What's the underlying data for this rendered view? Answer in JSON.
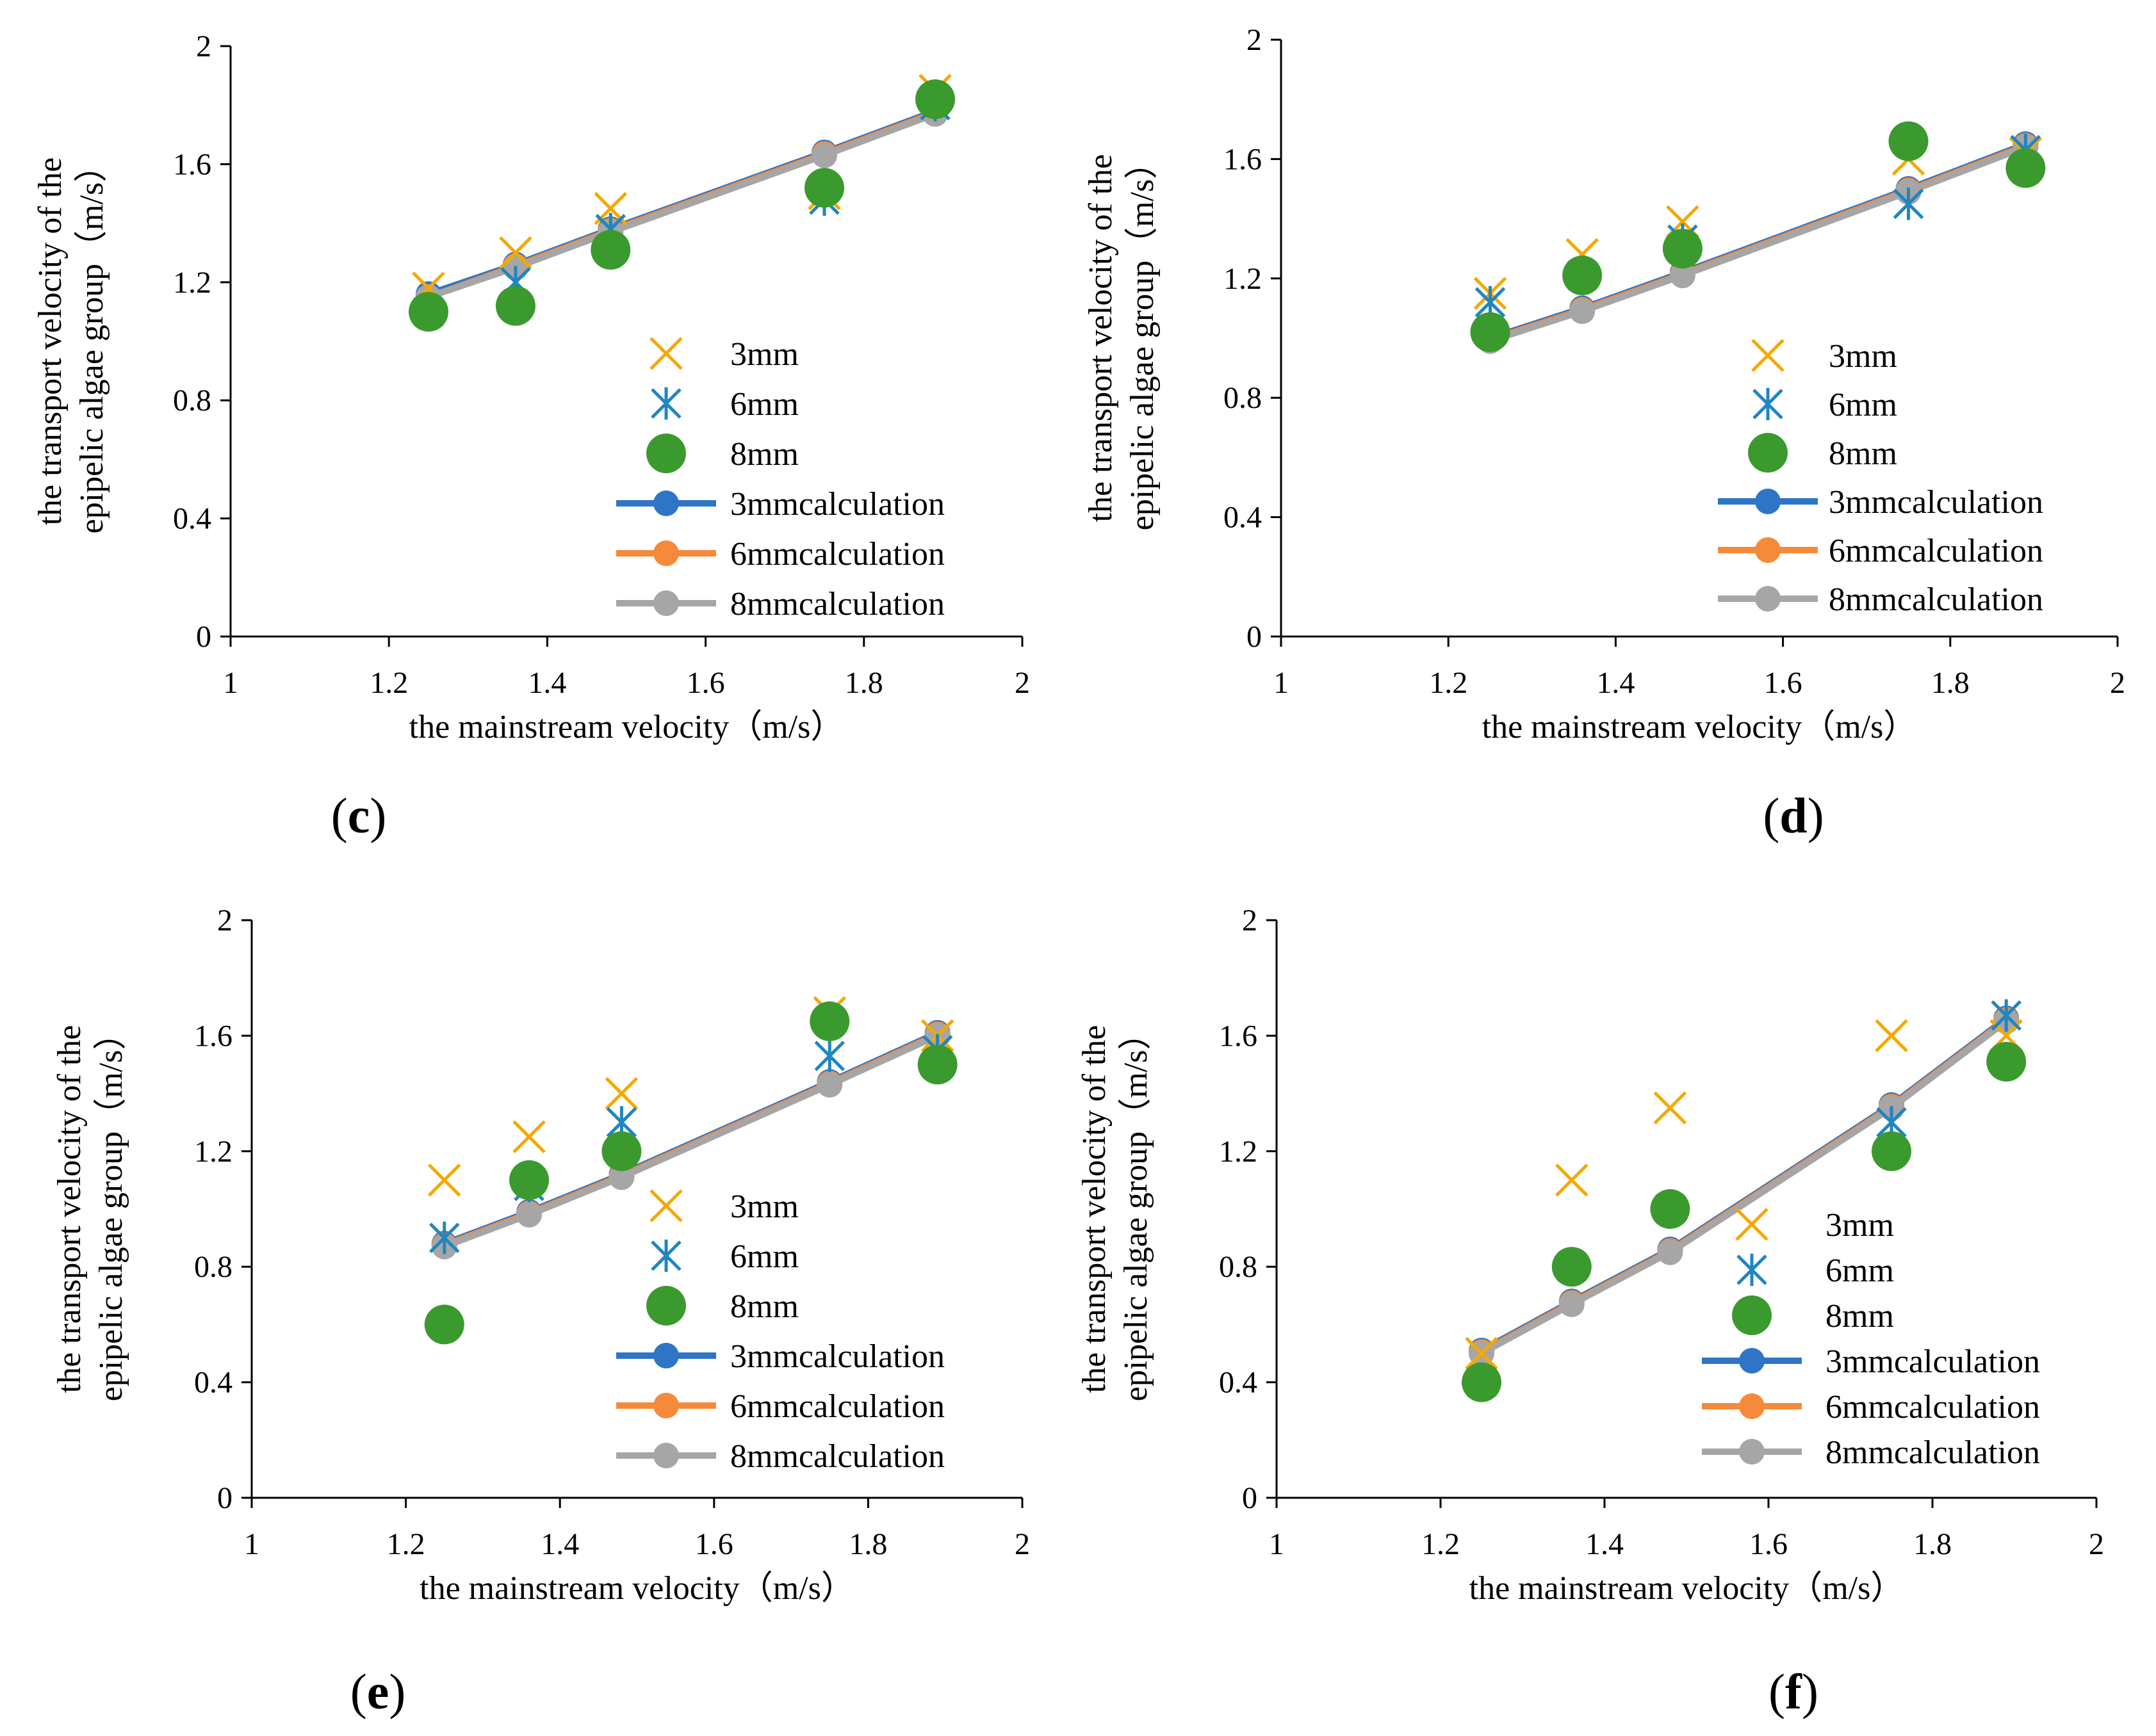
{
  "colors": {
    "3mm": "#F5A800",
    "6mm": "#1F86C0",
    "8mm": "#3A9A2E",
    "calc3": "#2E75C6",
    "calc6": "#F58A3A",
    "calc8": "#A6A6A6"
  },
  "chart_data": [
    {
      "type": "scatter",
      "panel_label": "c",
      "xlabel": "the mainstream velocity（m/s）",
      "ylabel_line1": "the transport velocity of the",
      "ylabel_line2": "epipelic algae group（m/s）",
      "xlim": [
        1,
        2
      ],
      "ylim": [
        0,
        2
      ],
      "xticks": [
        "1",
        "1.2",
        "1.4",
        "1.6",
        "1.8",
        "2"
      ],
      "yticks": [
        "0",
        "0.4",
        "0.8",
        "1.2",
        "1.6",
        "2"
      ],
      "legend_position": "right",
      "x": [
        1.25,
        1.36,
        1.48,
        1.75,
        1.89
      ],
      "series": [
        {
          "name": "3mm",
          "marker": "x",
          "values": [
            1.18,
            1.3,
            1.45,
            1.5,
            1.85
          ]
        },
        {
          "name": "6mm",
          "marker": "star",
          "values": [
            1.1,
            1.2,
            1.38,
            1.48,
            1.8
          ]
        },
        {
          "name": "8mm",
          "marker": "dot",
          "values": [
            1.1,
            1.12,
            1.31,
            1.52,
            1.82
          ]
        },
        {
          "name": "3mmcalculation",
          "marker": "line",
          "values": [
            1.16,
            1.26,
            1.38,
            1.64,
            1.78
          ]
        },
        {
          "name": "6mmcalculation",
          "marker": "line",
          "values": [
            1.15,
            1.255,
            1.375,
            1.635,
            1.775
          ]
        },
        {
          "name": "8mmcalculation",
          "marker": "line",
          "values": [
            1.15,
            1.25,
            1.37,
            1.63,
            1.77
          ]
        }
      ]
    },
    {
      "type": "scatter",
      "panel_label": "d",
      "xlabel": "the mainstream velocity（m/s）",
      "ylabel_line1": "the transport velocity of the",
      "ylabel_line2": "epipelic algae group（m/s）",
      "xlim": [
        1,
        2
      ],
      "ylim": [
        0,
        2
      ],
      "xticks": [
        "1",
        "1.2",
        "1.4",
        "1.6",
        "1.8",
        "2"
      ],
      "yticks": [
        "0",
        "0.4",
        "0.8",
        "1.2",
        "1.6",
        "2"
      ],
      "legend_position": "right",
      "x": [
        1.25,
        1.36,
        1.48,
        1.75,
        1.89
      ],
      "series": [
        {
          "name": "3mm",
          "marker": "x",
          "values": [
            1.15,
            1.28,
            1.39,
            1.6,
            1.62
          ]
        },
        {
          "name": "6mm",
          "marker": "star",
          "values": [
            1.12,
            1.21,
            1.33,
            1.45,
            1.63
          ]
        },
        {
          "name": "8mm",
          "marker": "dot",
          "values": [
            1.02,
            1.21,
            1.3,
            1.66,
            1.57
          ]
        },
        {
          "name": "3mmcalculation",
          "marker": "line",
          "values": [
            1.0,
            1.1,
            1.22,
            1.5,
            1.65
          ]
        },
        {
          "name": "6mmcalculation",
          "marker": "line",
          "values": [
            0.995,
            1.095,
            1.215,
            1.495,
            1.645
          ]
        },
        {
          "name": "8mmcalculation",
          "marker": "line",
          "values": [
            0.99,
            1.09,
            1.21,
            1.49,
            1.64
          ]
        }
      ]
    },
    {
      "type": "scatter",
      "panel_label": "e",
      "xlabel": "the mainstream velocity（m/s）",
      "ylabel_line1": "the transport velocity of the",
      "ylabel_line2": "epipelic algae group（m/s）",
      "xlim": [
        1,
        2
      ],
      "ylim": [
        0,
        2
      ],
      "xticks": [
        "1",
        "1.2",
        "1.4",
        "1.6",
        "1.8",
        "2"
      ],
      "yticks": [
        "0",
        "0.4",
        "0.8",
        "1.2",
        "1.6",
        "2"
      ],
      "legend_position": "right",
      "x": [
        1.25,
        1.36,
        1.48,
        1.75,
        1.89
      ],
      "series": [
        {
          "name": "3mm",
          "marker": "x",
          "values": [
            1.1,
            1.25,
            1.4,
            1.68,
            1.6
          ]
        },
        {
          "name": "6mm",
          "marker": "star",
          "values": [
            0.9,
            1.08,
            1.3,
            1.53,
            1.55
          ]
        },
        {
          "name": "8mm",
          "marker": "dot",
          "values": [
            0.6,
            1.1,
            1.2,
            1.65,
            1.5
          ]
        },
        {
          "name": "3mmcalculation",
          "marker": "line",
          "values": [
            0.88,
            0.99,
            1.12,
            1.44,
            1.61
          ]
        },
        {
          "name": "6mmcalculation",
          "marker": "line",
          "values": [
            0.875,
            0.985,
            1.115,
            1.435,
            1.605
          ]
        },
        {
          "name": "8mmcalculation",
          "marker": "line",
          "values": [
            0.87,
            0.98,
            1.11,
            1.43,
            1.6
          ]
        }
      ]
    },
    {
      "type": "scatter",
      "panel_label": "f",
      "xlabel": "the mainstream velocity（m/s）",
      "ylabel_line1": "the transport velocity of the",
      "ylabel_line2": "epipelic algae group（m/s）",
      "xlim": [
        1,
        2
      ],
      "ylim": [
        0,
        2
      ],
      "xticks": [
        "1",
        "1.2",
        "1.4",
        "1.6",
        "1.8",
        "2"
      ],
      "yticks": [
        "0",
        "0.4",
        "0.8",
        "1.2",
        "1.6",
        "2"
      ],
      "legend_position": "right",
      "x": [
        1.25,
        1.36,
        1.48,
        1.75,
        1.89
      ],
      "series": [
        {
          "name": "3mm",
          "marker": "x",
          "values": [
            0.5,
            1.1,
            1.35,
            1.6,
            1.6
          ]
        },
        {
          "name": "6mm",
          "marker": "star",
          "values": [
            0.4,
            0.8,
            1.0,
            1.3,
            1.67
          ]
        },
        {
          "name": "8mm",
          "marker": "dot",
          "values": [
            0.4,
            0.8,
            1.0,
            1.2,
            1.51
          ]
        },
        {
          "name": "3mmcalculation",
          "marker": "line",
          "values": [
            0.51,
            0.68,
            0.86,
            1.36,
            1.66
          ]
        },
        {
          "name": "6mmcalculation",
          "marker": "line",
          "values": [
            0.505,
            0.675,
            0.855,
            1.355,
            1.655
          ]
        },
        {
          "name": "8mmcalculation",
          "marker": "line",
          "values": [
            0.5,
            0.67,
            0.85,
            1.35,
            1.65
          ]
        }
      ]
    }
  ]
}
